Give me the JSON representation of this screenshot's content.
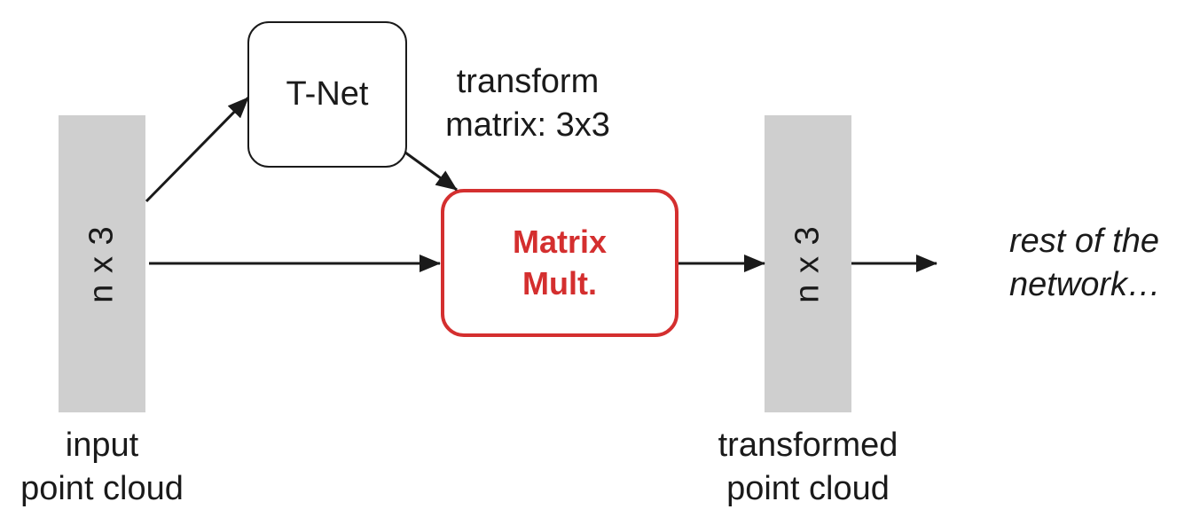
{
  "input": {
    "bar_label": "n x 3",
    "caption_line1": "input",
    "caption_line2": "point cloud"
  },
  "tnet": {
    "label": "T-Net"
  },
  "transform_label": {
    "line1": "transform",
    "line2": "matrix: 3x3"
  },
  "matmul": {
    "line1": "Matrix",
    "line2": "Mult."
  },
  "output": {
    "bar_label": "n x 3",
    "caption_line1": "transformed",
    "caption_line2": "point cloud"
  },
  "rest": {
    "line1": "rest of the",
    "line2": "network…"
  },
  "colors": {
    "accent": "#d42f2f",
    "bar_fill": "#cfcfcf",
    "ink": "#1a1a1a"
  }
}
